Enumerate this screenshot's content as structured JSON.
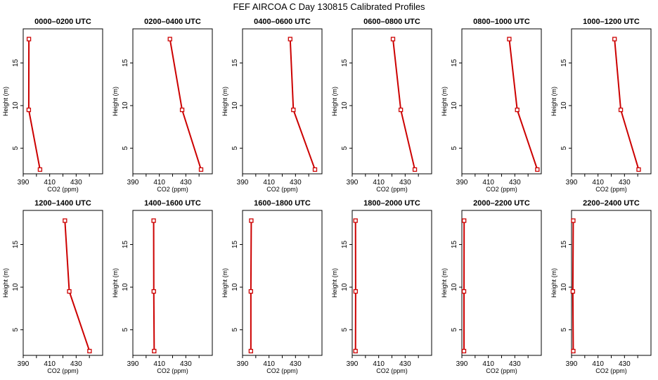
{
  "figure_title": "FEF  AIRCOA C  Day 130815  Calibrated Profiles",
  "chart_data": {
    "type": "line",
    "xlabel": "CO2 (ppm)",
    "ylabel": "Height (m)",
    "xlim": [
      390,
      450
    ],
    "ylim": [
      2,
      19
    ],
    "x_ticks": [
      "390",
      "410",
      "430"
    ],
    "y_ticks": [
      "5",
      "10",
      "15"
    ],
    "line_color": "#cc0000",
    "heights": [
      17.8,
      9.5,
      2.5
    ],
    "panels": [
      {
        "title": "0000–0200 UTC",
        "co2": [
          394.3,
          394.2,
          402.7
        ]
      },
      {
        "title": "0200–0400 UTC",
        "co2": [
          418.0,
          427.2,
          441.5
        ]
      },
      {
        "title": "0400–0600 UTC",
        "co2": [
          426.0,
          428.4,
          444.7
        ]
      },
      {
        "title": "0600–0800 UTC",
        "co2": [
          420.8,
          426.7,
          437.3
        ]
      },
      {
        "title": "0800–1000 UTC",
        "co2": [
          425.8,
          431.8,
          447.0
        ]
      },
      {
        "title": "1000–1200 UTC",
        "co2": [
          422.5,
          427.2,
          440.7
        ]
      },
      {
        "title": "1200–1400 UTC",
        "co2": [
          421.5,
          424.8,
          440.1
        ]
      },
      {
        "title": "1400–1600 UTC",
        "co2": [
          405.7,
          405.8,
          406.1
        ]
      },
      {
        "title": "1600–1800 UTC",
        "co2": [
          396.6,
          396.3,
          396.3
        ]
      },
      {
        "title": "1800–2000 UTC",
        "co2": [
          392.5,
          392.6,
          392.5
        ]
      },
      {
        "title": "2000–2200 UTC",
        "co2": [
          391.7,
          391.6,
          391.6
        ]
      },
      {
        "title": "2200–2400 UTC",
        "co2": [
          391.3,
          391.0,
          391.3
        ]
      }
    ]
  }
}
